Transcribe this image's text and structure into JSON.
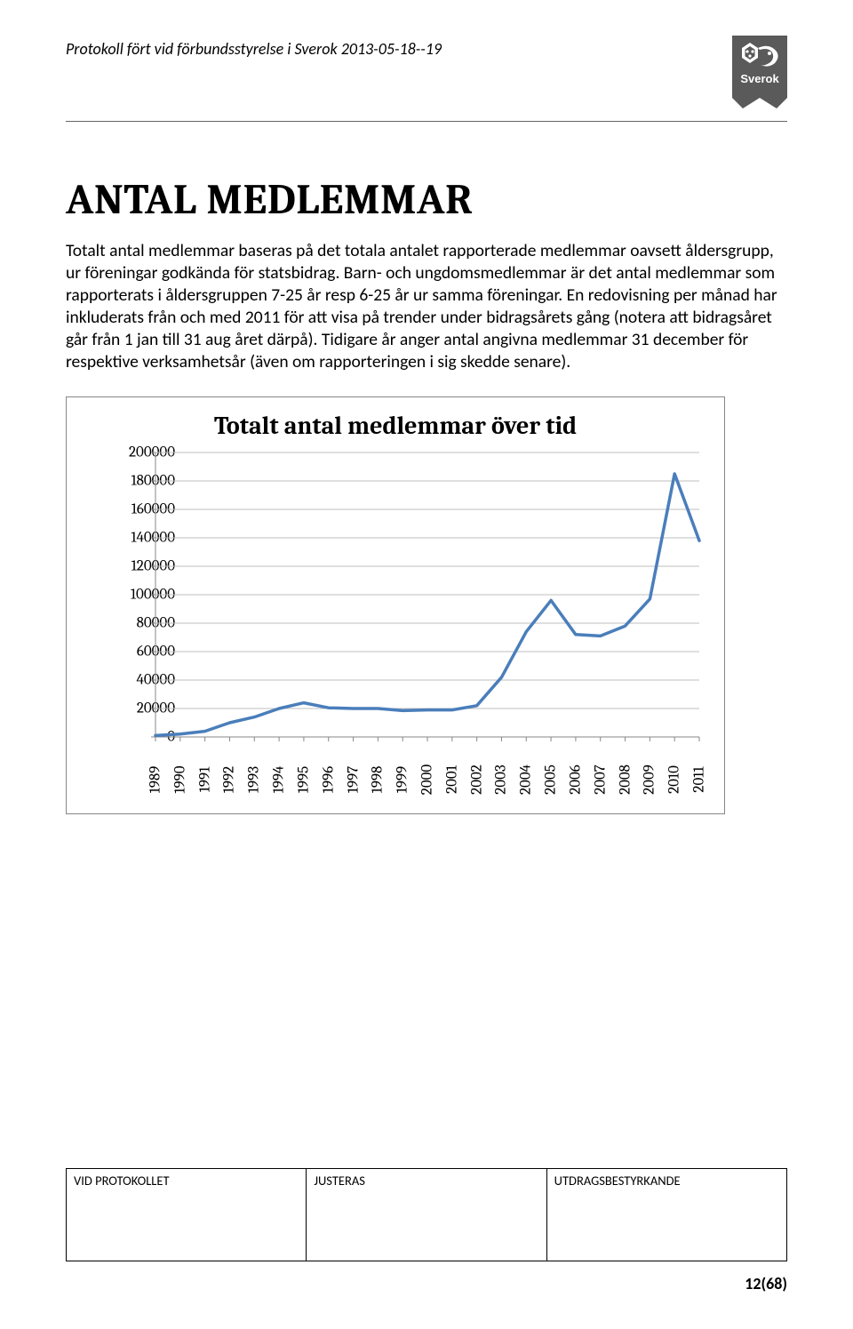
{
  "header": {
    "doc_title": "Protokoll fört vid förbundsstyrelse i Sverok 2013-05-18--19",
    "logo_label": "Sverok",
    "logo_bg": "#5a5a5a",
    "logo_fg": "#ffffff"
  },
  "title": "ANTAL MEDLEMMAR",
  "paragraph": "Totalt antal medlemmar baseras på det totala antalet rapporterade medlemmar oavsett åldersgrupp, ur föreningar godkända för statsbidrag. Barn- och ungdomsmedlemmar är det antal medlemmar som rapporterats i åldersgruppen 7-25 år resp 6-25 år ur samma föreningar. En redovisning per månad har inkluderats från och med 2011 för att visa på trender under bidragsårets gång (notera att bidragsåret går från 1 jan till 31 aug året därpå). Tidigare år anger antal angivna medlemmar 31 december för respektive verksamhetsår (även om rapporteringen i sig skedde senare).",
  "chart": {
    "type": "line",
    "title": "Totalt antal medlemmar över tid",
    "title_fontsize": 28,
    "line_color": "#4a7ebb",
    "line_width": 3.5,
    "background_color": "#ffffff",
    "grid_color": "#bfbfbf",
    "border_color": "#878787",
    "label_fontsize": 17,
    "x_labels": [
      "1989",
      "1990",
      "1991",
      "1992",
      "1993",
      "1994",
      "1995",
      "1996",
      "1997",
      "1998",
      "1999",
      "2000",
      "2001",
      "2002",
      "2003",
      "2004",
      "2005",
      "2006",
      "2007",
      "2008",
      "2009",
      "2010",
      "2011"
    ],
    "y_labels": [
      "0",
      "20000",
      "40000",
      "60000",
      "80000",
      "100000",
      "120000",
      "140000",
      "160000",
      "180000",
      "200000"
    ],
    "ylim": [
      0,
      200000
    ],
    "ytick_step": 20000,
    "xlim_index": [
      0,
      22
    ],
    "values": [
      1000,
      2000,
      4000,
      10000,
      14000,
      20000,
      24000,
      20500,
      20000,
      20000,
      18500,
      19000,
      19000,
      22000,
      42000,
      74000,
      96000,
      72000,
      71000,
      78000,
      97000,
      185000,
      138000
    ]
  },
  "footer": {
    "col1": "VID PROTOKOLLET",
    "col2": "JUSTERAS",
    "col3": "UTDRAGSBESTYRKANDE",
    "page_num": "12(68)"
  }
}
